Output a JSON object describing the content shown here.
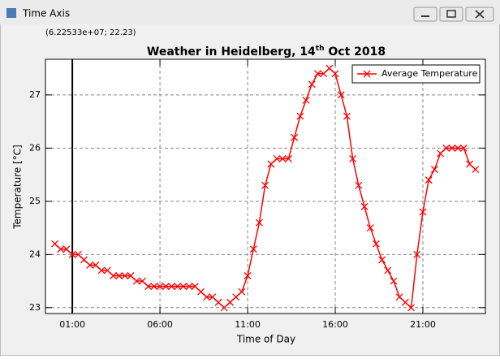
{
  "window": {
    "title": "Time Axis",
    "coordinates": "(6.22533e+07; 22.23)"
  },
  "chart_data": {
    "type": "line",
    "title": [
      "Weather in Heidelberg, 14",
      "th",
      " Oct 2018"
    ],
    "x_label": "Time of Day",
    "y_label": "Temperature [°C]",
    "x": [
      0,
      20,
      40,
      60,
      80,
      100,
      120,
      140,
      160,
      180,
      200,
      220,
      240,
      260,
      280,
      300,
      320,
      340,
      360,
      380,
      400,
      420,
      440,
      460,
      480,
      500,
      520,
      540,
      560,
      580,
      600,
      620,
      640,
      660,
      680,
      700,
      720,
      740,
      760,
      780,
      800,
      820,
      840,
      860,
      880,
      900,
      920,
      940,
      960,
      980,
      1000,
      1020,
      1040,
      1060,
      1080,
      1100,
      1120,
      1140,
      1160,
      1180,
      1200,
      1220,
      1240,
      1260,
      1280,
      1300,
      1320,
      1340,
      1360,
      1380,
      1400,
      1420,
      1440
    ],
    "series": [
      {
        "name": "Average Temperature",
        "color": "#ff0000",
        "values": [
          24.2,
          24.1,
          24.1,
          24.0,
          24.0,
          23.9,
          23.8,
          23.8,
          23.7,
          23.7,
          23.6,
          23.6,
          23.6,
          23.6,
          23.5,
          23.5,
          23.4,
          23.4,
          23.4,
          23.4,
          23.4,
          23.4,
          23.4,
          23.4,
          23.4,
          23.3,
          23.2,
          23.2,
          23.1,
          23.0,
          23.1,
          23.2,
          23.3,
          23.6,
          24.1,
          24.6,
          25.3,
          25.7,
          25.8,
          25.8,
          25.8,
          26.2,
          26.6,
          26.9,
          27.2,
          27.4,
          27.4,
          27.5,
          27.4,
          27.0,
          26.6,
          25.8,
          25.3,
          24.9,
          24.5,
          24.2,
          23.9,
          23.7,
          23.5,
          23.2,
          23.1,
          23.0,
          24.0,
          24.8,
          25.4,
          25.6,
          25.9,
          26.0,
          26.0,
          26.0,
          26.0,
          25.7,
          25.6
        ]
      }
    ],
    "xlim": [
      -32,
      1474
    ],
    "xticks": [
      {
        "value": 60,
        "label": "01:00"
      },
      {
        "value": 360,
        "label": "06:00"
      },
      {
        "value": 660,
        "label": "11:00"
      },
      {
        "value": 960,
        "label": "16:00"
      },
      {
        "value": 1260,
        "label": "21:00"
      }
    ],
    "ylim": [
      22.89,
      27.67
    ],
    "yticks": [
      23,
      24,
      25,
      26,
      27
    ],
    "grid": true,
    "legend": "top-right",
    "marker_line_x": 60
  }
}
